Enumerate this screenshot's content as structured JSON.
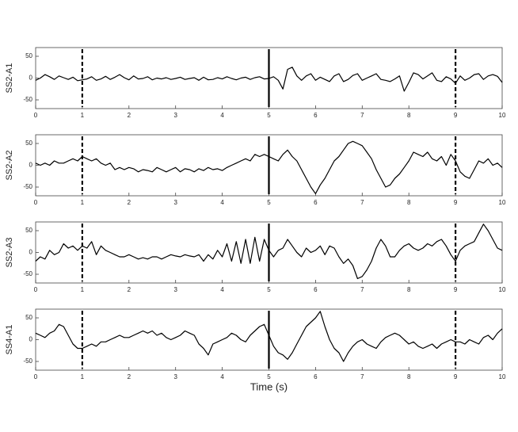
{
  "chart_data": [
    {
      "type": "line",
      "ylabel": "SS2-A1",
      "color": "#000000",
      "xlim": [
        0,
        10
      ],
      "ylim": [
        -70,
        70
      ],
      "xticks": [
        0,
        1,
        2,
        3,
        4,
        5,
        6,
        7,
        8,
        9,
        10
      ],
      "yticks": [
        -50,
        0,
        50
      ],
      "vlines": [
        {
          "x": 1,
          "style": "dashed"
        },
        {
          "x": 5,
          "style": "solid"
        },
        {
          "x": 9,
          "style": "dashed"
        }
      ],
      "x": [
        0,
        0.1,
        0.2,
        0.3,
        0.4,
        0.5,
        0.6,
        0.7,
        0.8,
        0.9,
        1,
        1.1,
        1.2,
        1.3,
        1.4,
        1.5,
        1.6,
        1.7,
        1.8,
        1.9,
        2,
        2.1,
        2.2,
        2.3,
        2.4,
        2.5,
        2.6,
        2.7,
        2.8,
        2.9,
        3,
        3.1,
        3.2,
        3.3,
        3.4,
        3.5,
        3.6,
        3.7,
        3.8,
        3.9,
        4,
        4.1,
        4.2,
        4.3,
        4.4,
        4.5,
        4.6,
        4.7,
        4.8,
        4.9,
        5,
        5.1,
        5.2,
        5.3,
        5.4,
        5.5,
        5.6,
        5.7,
        5.8,
        5.9,
        6,
        6.1,
        6.2,
        6.3,
        6.4,
        6.5,
        6.6,
        6.7,
        6.8,
        6.9,
        7,
        7.1,
        7.2,
        7.3,
        7.4,
        7.5,
        7.6,
        7.7,
        7.8,
        7.9,
        8,
        8.1,
        8.2,
        8.3,
        8.4,
        8.5,
        8.6,
        8.7,
        8.8,
        8.9,
        9,
        9.1,
        9.2,
        9.3,
        9.4,
        9.5,
        9.6,
        9.7,
        9.8,
        9.9,
        10
      ],
      "values": [
        -5,
        0,
        8,
        3,
        -3,
        5,
        1,
        -3,
        2,
        -6,
        -4,
        -2,
        3,
        -5,
        -2,
        4,
        -3,
        2,
        8,
        1,
        -4,
        5,
        -2,
        -1,
        3,
        -4,
        0,
        -2,
        1,
        -3,
        -1,
        2,
        -3,
        -1,
        1,
        -5,
        2,
        -4,
        -3,
        1,
        -2,
        3,
        -1,
        -4,
        0,
        2,
        -3,
        1,
        3,
        -2,
        -1,
        3,
        -5,
        -25,
        20,
        25,
        5,
        -5,
        5,
        10,
        -5,
        2,
        -3,
        -8,
        5,
        10,
        -8,
        -3,
        6,
        10,
        -5,
        0,
        5,
        10,
        -3,
        -5,
        -8,
        -2,
        5,
        -30,
        -10,
        12,
        8,
        -2,
        5,
        12,
        -5,
        -8,
        3,
        -2,
        -12,
        5,
        -5,
        0,
        8,
        10,
        -3,
        5,
        8,
        4,
        -10
      ]
    },
    {
      "type": "line",
      "ylabel": "SS2-A2",
      "color": "#000000",
      "xlim": [
        0,
        10
      ],
      "ylim": [
        -70,
        70
      ],
      "xticks": [
        0,
        1,
        2,
        3,
        4,
        5,
        6,
        7,
        8,
        9,
        10
      ],
      "yticks": [
        -50,
        0,
        50
      ],
      "vlines": [
        {
          "x": 1,
          "style": "dashed"
        },
        {
          "x": 5,
          "style": "solid"
        },
        {
          "x": 9,
          "style": "dashed"
        }
      ],
      "x": [
        0,
        0.1,
        0.2,
        0.3,
        0.4,
        0.5,
        0.6,
        0.7,
        0.8,
        0.9,
        1,
        1.1,
        1.2,
        1.3,
        1.4,
        1.5,
        1.6,
        1.7,
        1.8,
        1.9,
        2,
        2.1,
        2.2,
        2.3,
        2.4,
        2.5,
        2.6,
        2.7,
        2.8,
        2.9,
        3,
        3.1,
        3.2,
        3.3,
        3.4,
        3.5,
        3.6,
        3.7,
        3.8,
        3.9,
        4,
        4.1,
        4.2,
        4.3,
        4.4,
        4.5,
        4.6,
        4.7,
        4.8,
        4.9,
        5,
        5.1,
        5.2,
        5.3,
        5.4,
        5.5,
        5.6,
        5.7,
        5.8,
        5.9,
        6,
        6.1,
        6.2,
        6.3,
        6.4,
        6.5,
        6.6,
        6.7,
        6.8,
        6.9,
        7,
        7.1,
        7.2,
        7.3,
        7.4,
        7.5,
        7.6,
        7.7,
        7.8,
        7.9,
        8,
        8.1,
        8.2,
        8.3,
        8.4,
        8.5,
        8.6,
        8.7,
        8.8,
        8.9,
        9,
        9.1,
        9.2,
        9.3,
        9.4,
        9.5,
        9.6,
        9.7,
        9.8,
        9.9,
        10
      ],
      "values": [
        5,
        0,
        5,
        0,
        10,
        5,
        5,
        10,
        15,
        10,
        20,
        15,
        10,
        15,
        5,
        0,
        5,
        -10,
        -5,
        -10,
        -5,
        -8,
        -15,
        -10,
        -12,
        -15,
        -5,
        -10,
        -15,
        -10,
        -5,
        -15,
        -8,
        -10,
        -15,
        -8,
        -12,
        -5,
        -10,
        -8,
        -12,
        -5,
        0,
        5,
        10,
        15,
        10,
        25,
        20,
        25,
        20,
        15,
        10,
        25,
        35,
        20,
        10,
        -10,
        -30,
        -50,
        -65,
        -45,
        -30,
        -10,
        10,
        20,
        35,
        50,
        55,
        50,
        45,
        30,
        15,
        -10,
        -30,
        -50,
        -45,
        -30,
        -20,
        -5,
        10,
        30,
        25,
        20,
        30,
        15,
        10,
        20,
        0,
        25,
        10,
        -15,
        -25,
        -30,
        -10,
        10,
        5,
        15,
        0,
        5,
        -5
      ]
    },
    {
      "type": "line",
      "ylabel": "SS2-A3",
      "color": "#000000",
      "xlim": [
        0,
        10
      ],
      "ylim": [
        -70,
        70
      ],
      "xticks": [
        0,
        1,
        2,
        3,
        4,
        5,
        6,
        7,
        8,
        9,
        10
      ],
      "yticks": [
        -50,
        0,
        50
      ],
      "vlines": [
        {
          "x": 1,
          "style": "dashed"
        },
        {
          "x": 5,
          "style": "solid"
        },
        {
          "x": 9,
          "style": "dashed"
        }
      ],
      "x": [
        0,
        0.1,
        0.2,
        0.3,
        0.4,
        0.5,
        0.6,
        0.7,
        0.8,
        0.9,
        1,
        1.1,
        1.2,
        1.3,
        1.4,
        1.5,
        1.6,
        1.7,
        1.8,
        1.9,
        2,
        2.1,
        2.2,
        2.3,
        2.4,
        2.5,
        2.6,
        2.7,
        2.8,
        2.9,
        3,
        3.1,
        3.2,
        3.3,
        3.4,
        3.5,
        3.6,
        3.7,
        3.8,
        3.9,
        4,
        4.1,
        4.2,
        4.3,
        4.4,
        4.5,
        4.6,
        4.7,
        4.8,
        4.9,
        5,
        5.1,
        5.2,
        5.3,
        5.4,
        5.5,
        5.6,
        5.7,
        5.8,
        5.9,
        6,
        6.1,
        6.2,
        6.3,
        6.4,
        6.5,
        6.6,
        6.7,
        6.8,
        6.9,
        7,
        7.1,
        7.2,
        7.3,
        7.4,
        7.5,
        7.6,
        7.7,
        7.8,
        7.9,
        8,
        8.1,
        8.2,
        8.3,
        8.4,
        8.5,
        8.6,
        8.7,
        8.8,
        8.9,
        9,
        9.1,
        9.2,
        9.3,
        9.4,
        9.5,
        9.6,
        9.7,
        9.8,
        9.9,
        10
      ],
      "values": [
        -20,
        -10,
        -15,
        5,
        -5,
        0,
        20,
        10,
        15,
        5,
        15,
        10,
        25,
        -5,
        15,
        5,
        0,
        -5,
        -10,
        -10,
        -5,
        -10,
        -15,
        -12,
        -15,
        -10,
        -10,
        -15,
        -10,
        -5,
        -8,
        -10,
        -5,
        -8,
        -10,
        -5,
        -20,
        -5,
        -15,
        5,
        -10,
        20,
        -20,
        25,
        -25,
        30,
        -25,
        35,
        -20,
        30,
        5,
        -10,
        5,
        10,
        30,
        15,
        0,
        -10,
        10,
        0,
        5,
        15,
        -5,
        15,
        10,
        -10,
        -25,
        -15,
        -30,
        -60,
        -55,
        -40,
        -20,
        10,
        30,
        15,
        -10,
        -10,
        5,
        15,
        20,
        10,
        5,
        10,
        20,
        15,
        25,
        30,
        15,
        -5,
        -20,
        5,
        15,
        20,
        25,
        45,
        65,
        50,
        30,
        10,
        5
      ]
    },
    {
      "type": "line",
      "ylabel": "SS4-A1",
      "xlabel": "Time (s)",
      "color": "#000000",
      "xlim": [
        0,
        10
      ],
      "ylim": [
        -70,
        70
      ],
      "xticks": [
        0,
        1,
        2,
        3,
        4,
        5,
        6,
        7,
        8,
        9,
        10
      ],
      "yticks": [
        -50,
        0,
        50
      ],
      "vlines": [
        {
          "x": 1,
          "style": "dashed"
        },
        {
          "x": 5,
          "style": "solid"
        },
        {
          "x": 9,
          "style": "dashed"
        }
      ],
      "x": [
        0,
        0.1,
        0.2,
        0.3,
        0.4,
        0.5,
        0.6,
        0.7,
        0.8,
        0.9,
        1,
        1.1,
        1.2,
        1.3,
        1.4,
        1.5,
        1.6,
        1.7,
        1.8,
        1.9,
        2,
        2.1,
        2.2,
        2.3,
        2.4,
        2.5,
        2.6,
        2.7,
        2.8,
        2.9,
        3,
        3.1,
        3.2,
        3.3,
        3.4,
        3.5,
        3.6,
        3.7,
        3.8,
        3.9,
        4,
        4.1,
        4.2,
        4.3,
        4.4,
        4.5,
        4.6,
        4.7,
        4.8,
        4.9,
        5,
        5.1,
        5.2,
        5.3,
        5.4,
        5.5,
        5.6,
        5.7,
        5.8,
        5.9,
        6,
        6.1,
        6.2,
        6.3,
        6.4,
        6.5,
        6.6,
        6.7,
        6.8,
        6.9,
        7,
        7.1,
        7.2,
        7.3,
        7.4,
        7.5,
        7.6,
        7.7,
        7.8,
        7.9,
        8,
        8.1,
        8.2,
        8.3,
        8.4,
        8.5,
        8.6,
        8.7,
        8.8,
        8.9,
        9,
        9.1,
        9.2,
        9.3,
        9.4,
        9.5,
        9.6,
        9.7,
        9.8,
        9.9,
        10
      ],
      "values": [
        15,
        10,
        5,
        15,
        20,
        35,
        30,
        10,
        -10,
        -20,
        -20,
        -15,
        -10,
        -15,
        -5,
        -5,
        0,
        5,
        10,
        5,
        5,
        10,
        15,
        20,
        15,
        20,
        10,
        15,
        5,
        0,
        5,
        10,
        20,
        15,
        10,
        -10,
        -20,
        -35,
        -10,
        -5,
        0,
        5,
        15,
        10,
        0,
        -5,
        10,
        20,
        30,
        35,
        10,
        -15,
        -30,
        -35,
        -45,
        -30,
        -10,
        10,
        30,
        40,
        50,
        65,
        30,
        0,
        -20,
        -30,
        -50,
        -30,
        -15,
        -5,
        0,
        -10,
        -15,
        -20,
        -5,
        5,
        10,
        15,
        10,
        0,
        -10,
        -5,
        -15,
        -20,
        -15,
        -10,
        -20,
        -10,
        -5,
        0,
        -5,
        -5,
        -10,
        0,
        -5,
        -10,
        5,
        10,
        0,
        15,
        25
      ]
    }
  ]
}
